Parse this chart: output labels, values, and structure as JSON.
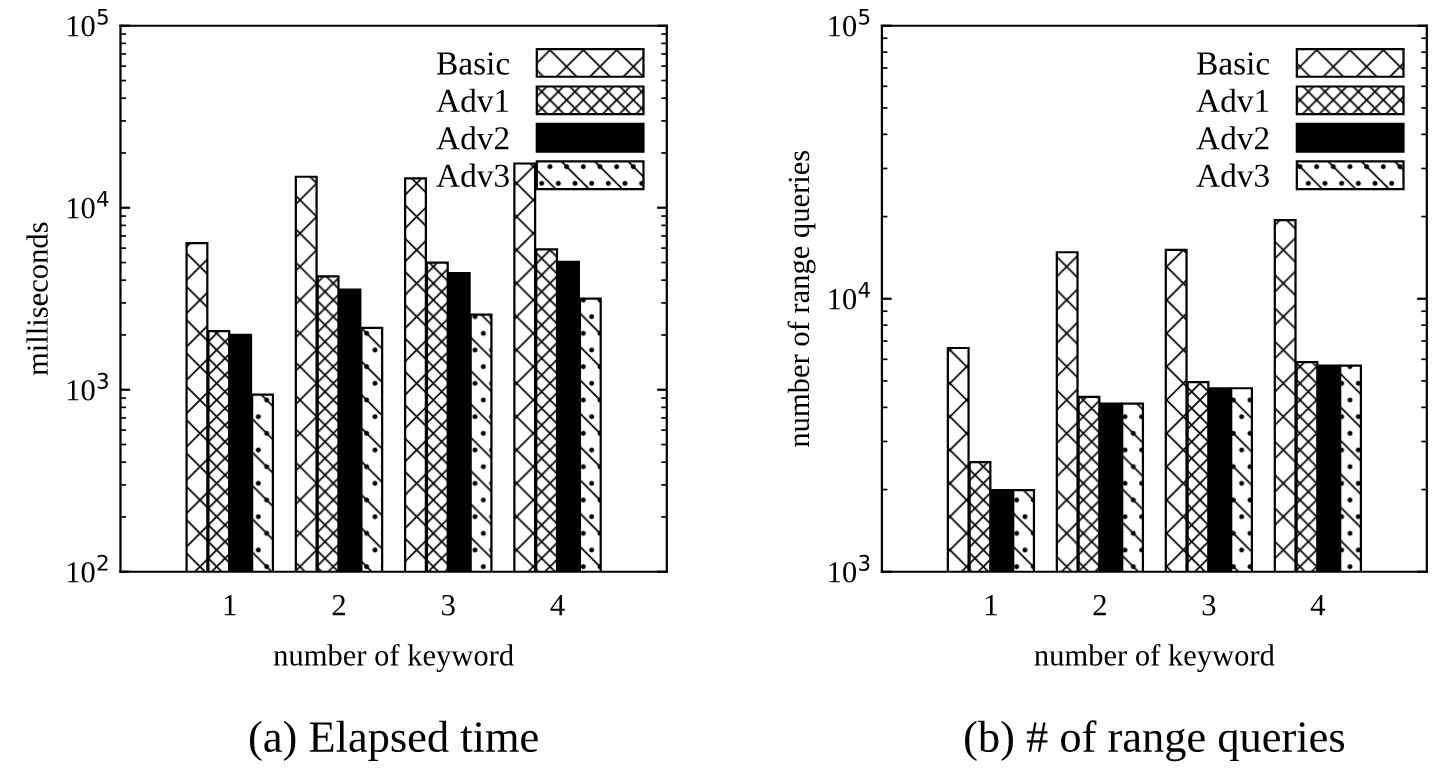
{
  "chart_data": [
    {
      "type": "bar",
      "title": "(a) Elapsed time",
      "xlabel": "number of keyword",
      "ylabel": "milliseconds",
      "categories": [
        "1",
        "2",
        "3",
        "4"
      ],
      "log": true,
      "legend": "top right",
      "grid": false,
      "ylim": [
        100,
        100000
      ],
      "yticks": [
        {
          "value": 100,
          "label": "10$^{2}$"
        },
        {
          "value": 1000,
          "label": "10$^{3}$"
        },
        {
          "value": 10000,
          "label": "10$^{4}$"
        },
        {
          "value": 100000,
          "label": "10$^{5}$"
        }
      ],
      "series": [
        {
          "name": "Basic",
          "color": "#000000",
          "values": [
            6400,
            14800,
            14500,
            17500
          ]
        },
        {
          "name": "Adv1",
          "color": "#000000",
          "values": [
            2100,
            4200,
            5000,
            5900
          ]
        },
        {
          "name": "Adv2",
          "color": "#000000",
          "values": [
            2000,
            3550,
            4370,
            5050
          ]
        },
        {
          "name": "Adv3",
          "color": "#000000",
          "values": [
            940,
            2190,
            2590,
            3170
          ]
        }
      ]
    },
    {
      "type": "bar",
      "title": "(b) # of range queries",
      "xlabel": "number of keyword",
      "ylabel": "number of range queries",
      "categories": [
        "1",
        "2",
        "3",
        "4"
      ],
      "log": true,
      "legend": "top right",
      "grid": false,
      "ylim": [
        1000,
        100000
      ],
      "yticks": [
        {
          "value": 1000,
          "label": "10$^{3}$"
        },
        {
          "value": 10000,
          "label": "10$^{4}$"
        },
        {
          "value": 100000,
          "label": "10$^{5}$"
        }
      ],
      "series": [
        {
          "name": "Basic",
          "color": "#000000",
          "values": [
            6600,
            14800,
            15100,
            19400
          ]
        },
        {
          "name": "Adv1",
          "color": "#000000",
          "values": [
            2520,
            4370,
            4950,
            5860
          ]
        },
        {
          "name": "Adv2",
          "color": "#000000",
          "values": [
            1990,
            4130,
            4700,
            5690
          ]
        },
        {
          "name": "Adv3",
          "color": "#000000",
          "values": [
            1990,
            4130,
            4700,
            5690
          ]
        }
      ]
    }
  ]
}
